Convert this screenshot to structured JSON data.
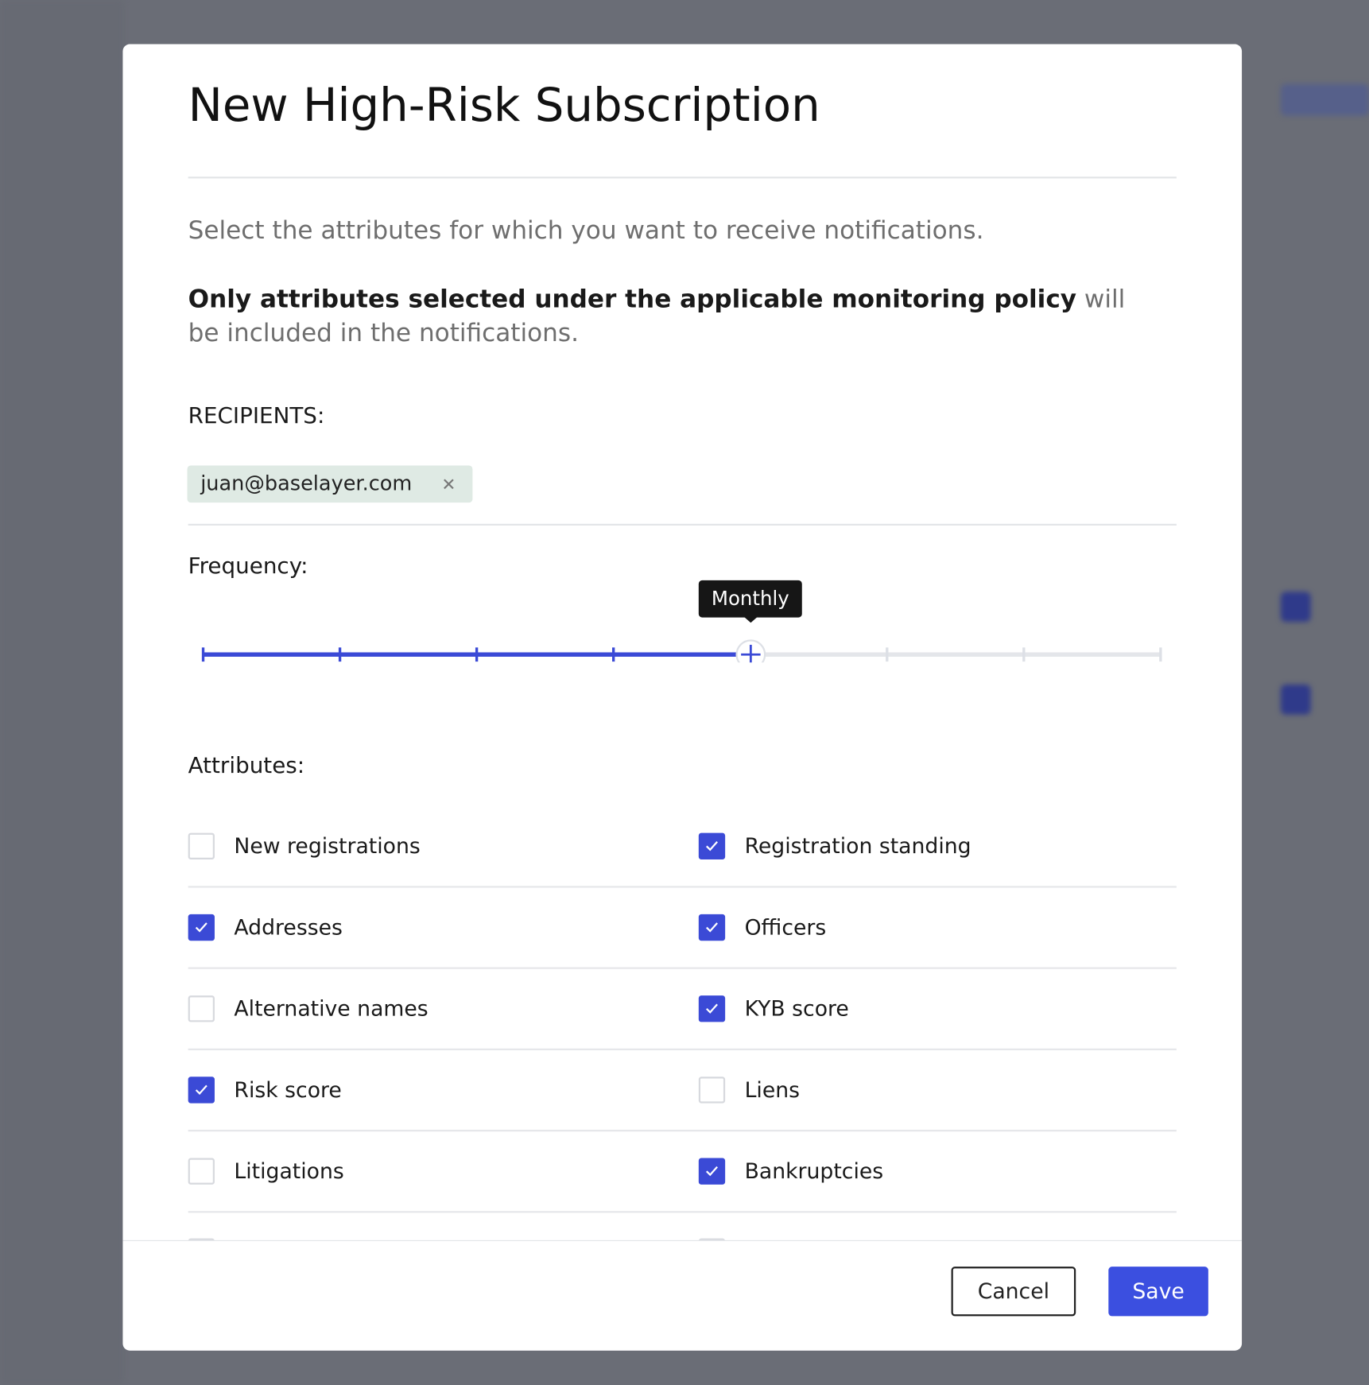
{
  "dialog": {
    "title": "New High-Risk Subscription",
    "description": "Select the attributes for which you want to receive notifications.",
    "policy_note": {
      "bold": "Only attributes selected under the applicable monitoring policy",
      "rest": " will be included in the notifications."
    },
    "recipients_label": "RECIPIENTS:",
    "recipients": [
      "juan@baselayer.com"
    ],
    "frequency_label": "Frequency:",
    "frequency_selected": "Monthly",
    "attributes_label": "Attributes:",
    "attributes": [
      {
        "label": "New registrations",
        "checked": false
      },
      {
        "label": "Registration standing",
        "checked": true
      },
      {
        "label": "Addresses",
        "checked": true
      },
      {
        "label": "Officers",
        "checked": true
      },
      {
        "label": "Alternative names",
        "checked": false
      },
      {
        "label": "KYB score",
        "checked": true
      },
      {
        "label": "Risk score",
        "checked": true
      },
      {
        "label": "Liens",
        "checked": false
      },
      {
        "label": "Litigations",
        "checked": false
      },
      {
        "label": "Bankruptcies",
        "checked": true
      }
    ],
    "buttons": {
      "cancel": "Cancel",
      "save": "Save"
    }
  }
}
